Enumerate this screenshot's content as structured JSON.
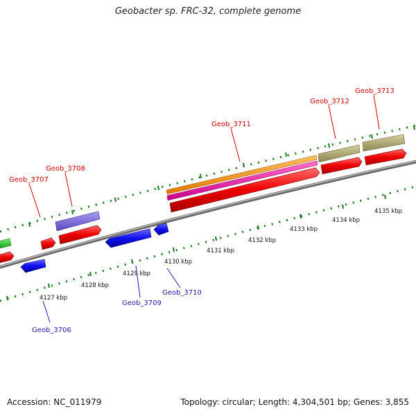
{
  "title": "Geobacter sp. FRC-32, complete genome",
  "footer": {
    "accession": "Accession: NC_011979",
    "summary": "Topology: circular; Length: 4,304,501 bp; Genes: 3,855"
  },
  "colors": {
    "backbone": "#888888",
    "tick": "#1a7a1a",
    "label_forward": "#cc0000",
    "label_reverse": "#1a1aaa",
    "kbp_label": "#111111"
  },
  "kbp_ticks": [
    "4127 kbp",
    "4128 kbp",
    "4129 kbp",
    "4130 kbp",
    "4131 kbp",
    "4132 kbp",
    "4133 kbp",
    "4134 kbp",
    "4135 kbp"
  ],
  "gene_labels": [
    {
      "id": "Geob_3706",
      "strand": "reverse"
    },
    {
      "id": "Geob_3707",
      "strand": "forward"
    },
    {
      "id": "Geob_3708",
      "strand": "forward"
    },
    {
      "id": "Geob_3709",
      "strand": "reverse"
    },
    {
      "id": "Geob_3710",
      "strand": "reverse"
    },
    {
      "id": "Geob_3711",
      "strand": "forward"
    },
    {
      "id": "Geob_3712",
      "strand": "forward"
    },
    {
      "id": "Geob_3713",
      "strand": "forward"
    }
  ]
}
